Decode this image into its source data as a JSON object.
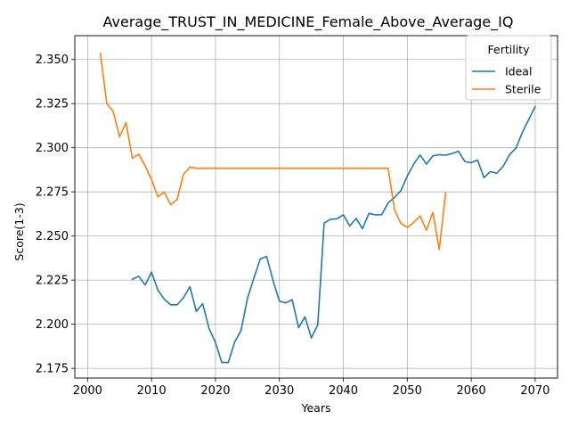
{
  "chart_data": {
    "type": "line",
    "title": "Average_TRUST_IN_MEDICINE_Female_Above_Average_IQ",
    "xlabel": "Years",
    "ylabel": "Score(1-3)",
    "xlim": [
      1998,
      2073.5
    ],
    "ylim": [
      2.1695,
      2.3635
    ],
    "xticks": [
      2000,
      2010,
      2020,
      2030,
      2040,
      2050,
      2060,
      2070
    ],
    "yticks": [
      2.175,
      2.2,
      2.225,
      2.25,
      2.275,
      2.3,
      2.325,
      2.35
    ],
    "ytick_labels": [
      "2.175",
      "2.200",
      "2.225",
      "2.250",
      "2.275",
      "2.300",
      "2.325",
      "2.350"
    ],
    "grid": true,
    "legend": {
      "title": "Fertility",
      "placement": "top-right"
    },
    "series": [
      {
        "name": "Ideal",
        "color": "#1f77b4",
        "x": [
          2007,
          2008,
          2009,
          2010,
          2011,
          2012,
          2013,
          2014,
          2015,
          2016,
          2017,
          2018,
          2019,
          2020,
          2021,
          2022,
          2023,
          2024,
          2025,
          2026,
          2027,
          2028,
          2029,
          2030,
          2031,
          2032,
          2033,
          2034,
          2035,
          2036,
          2037,
          2038,
          2039,
          2040,
          2041,
          2042,
          2043,
          2044,
          2045,
          2046,
          2047,
          2048,
          2049,
          2050,
          2051,
          2052,
          2053,
          2054,
          2055,
          2056,
          2057,
          2058,
          2059,
          2060,
          2061,
          2062,
          2063,
          2064,
          2065,
          2066,
          2067,
          2068,
          2069,
          2070
        ],
        "y": [
          2.2255,
          2.2272,
          2.2222,
          2.2295,
          2.2193,
          2.2141,
          2.211,
          2.211,
          2.2151,
          2.2213,
          2.2073,
          2.2116,
          2.1976,
          2.1896,
          2.1783,
          2.1783,
          2.1899,
          2.1965,
          2.2146,
          2.2261,
          2.2369,
          2.2385,
          2.2248,
          2.2131,
          2.2121,
          2.2139,
          2.198,
          2.2042,
          2.1922,
          2.1997,
          2.2573,
          2.2595,
          2.2597,
          2.262,
          2.2557,
          2.26,
          2.2541,
          2.2628,
          2.262,
          2.2621,
          2.2688,
          2.2718,
          2.2757,
          2.2839,
          2.2907,
          2.2959,
          2.2907,
          2.2954,
          2.2961,
          2.2958,
          2.2967,
          2.298,
          2.2922,
          2.2915,
          2.293,
          2.283,
          2.2865,
          2.2855,
          2.2895,
          2.2961,
          2.2998,
          2.3087,
          2.316,
          2.3233
        ]
      },
      {
        "name": "Sterile",
        "color": "#ff7f0e",
        "x": [
          2002,
          2003,
          2004,
          2005,
          2006,
          2007,
          2008,
          2009,
          2010,
          2011,
          2012,
          2013,
          2014,
          2015,
          2016,
          2017,
          2018,
          2019,
          2020,
          2021,
          2022,
          2023,
          2024,
          2025,
          2026,
          2027,
          2028,
          2029,
          2030,
          2031,
          2032,
          2033,
          2034,
          2035,
          2036,
          2037,
          2038,
          2039,
          2040,
          2041,
          2042,
          2043,
          2044,
          2045,
          2046,
          2047,
          2048,
          2049,
          2050,
          2051,
          2052,
          2053,
          2054,
          2055,
          2056
        ],
        "y": [
          2.3534,
          2.325,
          2.3206,
          2.3062,
          2.3142,
          2.294,
          2.2963,
          2.2897,
          2.2819,
          2.2722,
          2.2748,
          2.2677,
          2.2706,
          2.285,
          2.289,
          2.2884,
          2.2884,
          2.2884,
          2.2884,
          2.2884,
          2.2884,
          2.2884,
          2.2884,
          2.2884,
          2.2884,
          2.2884,
          2.2884,
          2.2884,
          2.2884,
          2.2884,
          2.2884,
          2.2884,
          2.2884,
          2.2884,
          2.2884,
          2.2884,
          2.2884,
          2.2884,
          2.2884,
          2.2884,
          2.2884,
          2.2884,
          2.2884,
          2.2884,
          2.2884,
          2.2884,
          2.2649,
          2.2571,
          2.2549,
          2.2577,
          2.2613,
          2.2533,
          2.2634,
          2.2423,
          2.2746
        ]
      }
    ]
  }
}
